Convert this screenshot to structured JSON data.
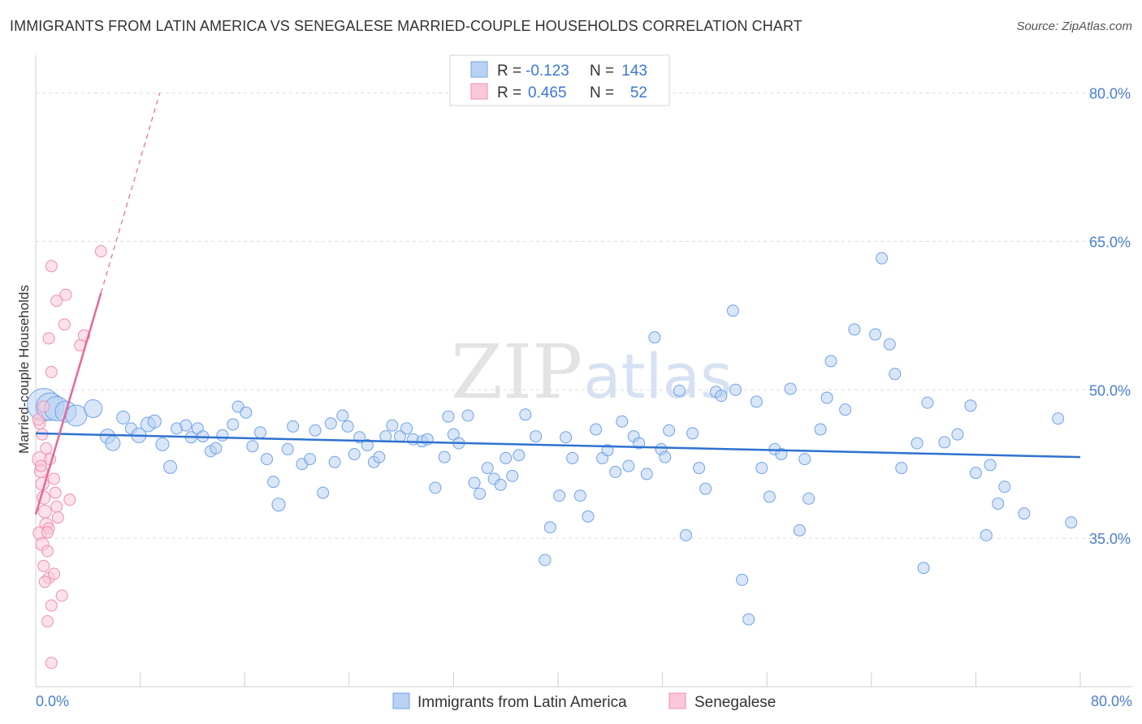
{
  "title": "IMMIGRANTS FROM LATIN AMERICA VS SENEGALESE MARRIED-COUPLE HOUSEHOLDS CORRELATION CHART",
  "source": "Source: ZipAtlas.com",
  "watermark": {
    "zip": "ZIP",
    "atlas": "atlas"
  },
  "colors": {
    "blue": "#6fa3e8",
    "blue_line": "#2f72d0",
    "pink": "#ee8fb0",
    "pink_line": "#e8669a",
    "tick": "#4a7fd1"
  },
  "chart_data": {
    "type": "scatter",
    "title": "IMMIGRANTS FROM LATIN AMERICA VS SENEGALESE MARRIED-COUPLE HOUSEHOLDS CORRELATION CHART",
    "xlabel": "",
    "ylabel": "Married-couple Households",
    "xlim": [
      0,
      80
    ],
    "ylim": [
      20,
      83
    ],
    "x_tick_labels": [
      {
        "v": 0,
        "label": "0.0%"
      },
      {
        "v": 80,
        "label": "80.0%"
      }
    ],
    "y_ticks": [
      {
        "v": 35,
        "label": "35.0%"
      },
      {
        "v": 50,
        "label": "50.0%"
      },
      {
        "v": 65,
        "label": "65.0%"
      },
      {
        "v": 80,
        "label": "80.0%"
      }
    ],
    "legend": [
      {
        "name": "Immigrants from Latin America",
        "r_label": "R =",
        "r": "-0.123",
        "n_label": "N =",
        "n": "143"
      },
      {
        "name": "Senegalese",
        "r_label": "R =",
        "r": "0.465",
        "n_label": "N =",
        "n": "52"
      }
    ],
    "series": [
      {
        "name": "Immigrants from Latin America",
        "trend": {
          "x": [
            0,
            80
          ],
          "y": [
            45.6,
            43.2
          ]
        },
        "points": [
          [
            0.6,
            48.5,
            2.0
          ],
          [
            1.1,
            48.3,
            1.7
          ],
          [
            1.6,
            48.1,
            1.5
          ],
          [
            2.3,
            47.8,
            1.3
          ],
          [
            3.1,
            47.4,
            1.3
          ],
          [
            4.4,
            48.1,
            1.1
          ],
          [
            5.5,
            45.3,
            0.9
          ],
          [
            5.9,
            44.6,
            0.9
          ],
          [
            6.7,
            47.2,
            0.8
          ],
          [
            7.3,
            46.1,
            0.7
          ],
          [
            7.9,
            45.4,
            0.9
          ],
          [
            8.6,
            46.5,
            0.9
          ],
          [
            9.1,
            46.8,
            0.8
          ],
          [
            9.7,
            44.5,
            0.8
          ],
          [
            10.3,
            42.2,
            0.8
          ],
          [
            10.8,
            46.1,
            0.7
          ],
          [
            11.5,
            46.4,
            0.7
          ],
          [
            11.9,
            45.2,
            0.7
          ],
          [
            12.4,
            46.1,
            0.7
          ],
          [
            12.8,
            45.3,
            0.7
          ],
          [
            13.4,
            43.8,
            0.7
          ],
          [
            13.8,
            44.1,
            0.7
          ],
          [
            14.3,
            45.4,
            0.7
          ],
          [
            15.1,
            46.5,
            0.7
          ],
          [
            15.5,
            48.3,
            0.7
          ],
          [
            16.1,
            47.7,
            0.7
          ],
          [
            16.6,
            44.3,
            0.7
          ],
          [
            17.2,
            45.7,
            0.7
          ],
          [
            17.7,
            43.0,
            0.7
          ],
          [
            18.2,
            40.7,
            0.7
          ],
          [
            18.6,
            38.4,
            0.8
          ],
          [
            19.3,
            44.0,
            0.7
          ],
          [
            19.7,
            46.3,
            0.7
          ],
          [
            20.4,
            42.5,
            0.7
          ],
          [
            21.0,
            43.0,
            0.7
          ],
          [
            21.4,
            45.9,
            0.7
          ],
          [
            22.0,
            39.6,
            0.7
          ],
          [
            22.6,
            46.6,
            0.7
          ],
          [
            22.9,
            42.7,
            0.7
          ],
          [
            23.5,
            47.4,
            0.7
          ],
          [
            23.9,
            46.3,
            0.7
          ],
          [
            24.4,
            43.5,
            0.7
          ],
          [
            24.8,
            45.2,
            0.7
          ],
          [
            25.4,
            44.4,
            0.7
          ],
          [
            25.9,
            42.7,
            0.7
          ],
          [
            26.3,
            43.2,
            0.7
          ],
          [
            26.8,
            45.3,
            0.7
          ],
          [
            27.3,
            46.4,
            0.7
          ],
          [
            27.9,
            45.3,
            0.7
          ],
          [
            28.4,
            46.1,
            0.7
          ],
          [
            28.9,
            45.0,
            0.7
          ],
          [
            29.6,
            44.8,
            0.7
          ],
          [
            30.0,
            45.0,
            0.7
          ],
          [
            30.6,
            40.1,
            0.7
          ],
          [
            31.3,
            43.2,
            0.7
          ],
          [
            31.6,
            47.3,
            0.7
          ],
          [
            32.0,
            45.5,
            0.7
          ],
          [
            32.4,
            44.6,
            0.7
          ],
          [
            33.1,
            47.4,
            0.7
          ],
          [
            33.6,
            40.6,
            0.7
          ],
          [
            34.0,
            39.5,
            0.7
          ],
          [
            34.6,
            42.1,
            0.7
          ],
          [
            35.1,
            41.0,
            0.7
          ],
          [
            35.6,
            40.4,
            0.7
          ],
          [
            36.0,
            43.1,
            0.7
          ],
          [
            36.5,
            41.3,
            0.7
          ],
          [
            37.0,
            43.4,
            0.7
          ],
          [
            37.5,
            47.5,
            0.7
          ],
          [
            38.3,
            45.3,
            0.7
          ],
          [
            39.0,
            32.8,
            0.7
          ],
          [
            39.4,
            36.1,
            0.7
          ],
          [
            40.1,
            39.3,
            0.7
          ],
          [
            40.6,
            45.2,
            0.7
          ],
          [
            41.1,
            43.1,
            0.7
          ],
          [
            41.7,
            39.3,
            0.7
          ],
          [
            42.3,
            37.2,
            0.7
          ],
          [
            42.9,
            46.0,
            0.7
          ],
          [
            43.4,
            43.1,
            0.7
          ],
          [
            43.8,
            43.9,
            0.7
          ],
          [
            44.4,
            41.7,
            0.7
          ],
          [
            44.9,
            46.8,
            0.7
          ],
          [
            45.4,
            42.3,
            0.7
          ],
          [
            45.8,
            45.3,
            0.7
          ],
          [
            46.2,
            44.6,
            0.7
          ],
          [
            46.8,
            41.5,
            0.7
          ],
          [
            47.4,
            55.3,
            0.7
          ],
          [
            47.9,
            44.0,
            0.7
          ],
          [
            48.2,
            43.2,
            0.7
          ],
          [
            48.5,
            45.9,
            0.7
          ],
          [
            49.3,
            49.9,
            0.7
          ],
          [
            49.8,
            35.3,
            0.7
          ],
          [
            50.3,
            45.6,
            0.7
          ],
          [
            50.8,
            42.1,
            0.7
          ],
          [
            51.3,
            40.0,
            0.7
          ],
          [
            52.1,
            49.8,
            0.7
          ],
          [
            52.5,
            49.4,
            0.7
          ],
          [
            53.4,
            58.0,
            0.7
          ],
          [
            53.6,
            50.0,
            0.7
          ],
          [
            54.1,
            30.8,
            0.7
          ],
          [
            54.6,
            26.8,
            0.7
          ],
          [
            55.2,
            48.8,
            0.7
          ],
          [
            55.6,
            42.1,
            0.7
          ],
          [
            56.2,
            39.2,
            0.7
          ],
          [
            56.6,
            44.0,
            0.7
          ],
          [
            57.1,
            43.5,
            0.7
          ],
          [
            57.8,
            50.1,
            0.7
          ],
          [
            58.5,
            35.8,
            0.7
          ],
          [
            58.9,
            43.0,
            0.7
          ],
          [
            59.2,
            39.0,
            0.7
          ],
          [
            60.1,
            46.0,
            0.7
          ],
          [
            60.6,
            49.2,
            0.7
          ],
          [
            60.9,
            52.9,
            0.7
          ],
          [
            62.0,
            48.0,
            0.7
          ],
          [
            62.7,
            56.1,
            0.7
          ],
          [
            64.3,
            55.6,
            0.7
          ],
          [
            64.8,
            63.3,
            0.7
          ],
          [
            65.4,
            54.6,
            0.7
          ],
          [
            65.8,
            51.6,
            0.7
          ],
          [
            66.3,
            42.1,
            0.7
          ],
          [
            67.5,
            44.6,
            0.7
          ],
          [
            68.0,
            32.0,
            0.7
          ],
          [
            68.3,
            48.7,
            0.7
          ],
          [
            69.6,
            44.7,
            0.7
          ],
          [
            70.6,
            45.5,
            0.7
          ],
          [
            71.6,
            48.4,
            0.7
          ],
          [
            72.0,
            41.6,
            0.7
          ],
          [
            72.8,
            35.3,
            0.7
          ],
          [
            73.1,
            42.4,
            0.7
          ],
          [
            73.7,
            38.5,
            0.7
          ],
          [
            74.2,
            40.2,
            0.7
          ],
          [
            75.7,
            37.5,
            0.7
          ],
          [
            78.3,
            47.1,
            0.7
          ],
          [
            79.3,
            36.6,
            0.7
          ]
        ]
      },
      {
        "name": "Senegalese",
        "trend": {
          "x": [
            0,
            5
          ],
          "y": [
            37.4,
            59.8
          ]
        },
        "trend_dashed": {
          "x": [
            5,
            9.5
          ],
          "y": [
            59.8,
            80.0
          ]
        },
        "points": [
          [
            0.3,
            43.0,
            0.9
          ],
          [
            0.4,
            41.8,
            0.8
          ],
          [
            0.5,
            40.5,
            0.8
          ],
          [
            0.6,
            39.1,
            0.8
          ],
          [
            0.7,
            37.7,
            0.8
          ],
          [
            0.8,
            36.4,
            0.8
          ],
          [
            0.3,
            35.5,
            0.8
          ],
          [
            0.5,
            34.4,
            0.8
          ],
          [
            0.9,
            33.7,
            0.7
          ],
          [
            0.6,
            32.2,
            0.7
          ],
          [
            1.0,
            31.0,
            0.7
          ],
          [
            0.7,
            30.6,
            0.7
          ],
          [
            1.4,
            31.4,
            0.7
          ],
          [
            1.2,
            28.2,
            0.7
          ],
          [
            0.9,
            26.6,
            0.7
          ],
          [
            2.0,
            29.2,
            0.7
          ],
          [
            1.2,
            22.4,
            0.7
          ],
          [
            0.5,
            45.5,
            0.7
          ],
          [
            0.3,
            46.6,
            0.7
          ],
          [
            0.8,
            44.1,
            0.7
          ],
          [
            1.1,
            43.0,
            0.7
          ],
          [
            0.4,
            42.3,
            0.7
          ],
          [
            1.4,
            41.0,
            0.7
          ],
          [
            1.5,
            39.6,
            0.7
          ],
          [
            1.6,
            38.2,
            0.7
          ],
          [
            1.7,
            37.1,
            0.7
          ],
          [
            1.0,
            36.0,
            0.7
          ],
          [
            0.9,
            35.6,
            0.7
          ],
          [
            1.2,
            51.8,
            0.7
          ],
          [
            1.0,
            55.2,
            0.7
          ],
          [
            1.6,
            59.0,
            0.7
          ],
          [
            2.3,
            59.6,
            0.7
          ],
          [
            1.2,
            62.5,
            0.7
          ],
          [
            2.2,
            56.6,
            0.7
          ],
          [
            3.4,
            54.5,
            0.7
          ],
          [
            3.7,
            55.5,
            0.7
          ],
          [
            2.6,
            38.9,
            0.7
          ],
          [
            5.0,
            64.0,
            0.7
          ],
          [
            0.2,
            47.0,
            0.7
          ],
          [
            0.6,
            48.3,
            0.7
          ]
        ]
      }
    ]
  },
  "legend_text": {
    "blue_r_label": "R =",
    "blue_r": "-0.123",
    "blue_n_label": "N =",
    "blue_n": "143",
    "pink_r_label": "R =",
    "pink_r": "0.465",
    "pink_n_label": "N =",
    "pink_n": "52"
  },
  "bottom_legend": {
    "blue": "Immigrants from Latin America",
    "pink": "Senegalese"
  }
}
